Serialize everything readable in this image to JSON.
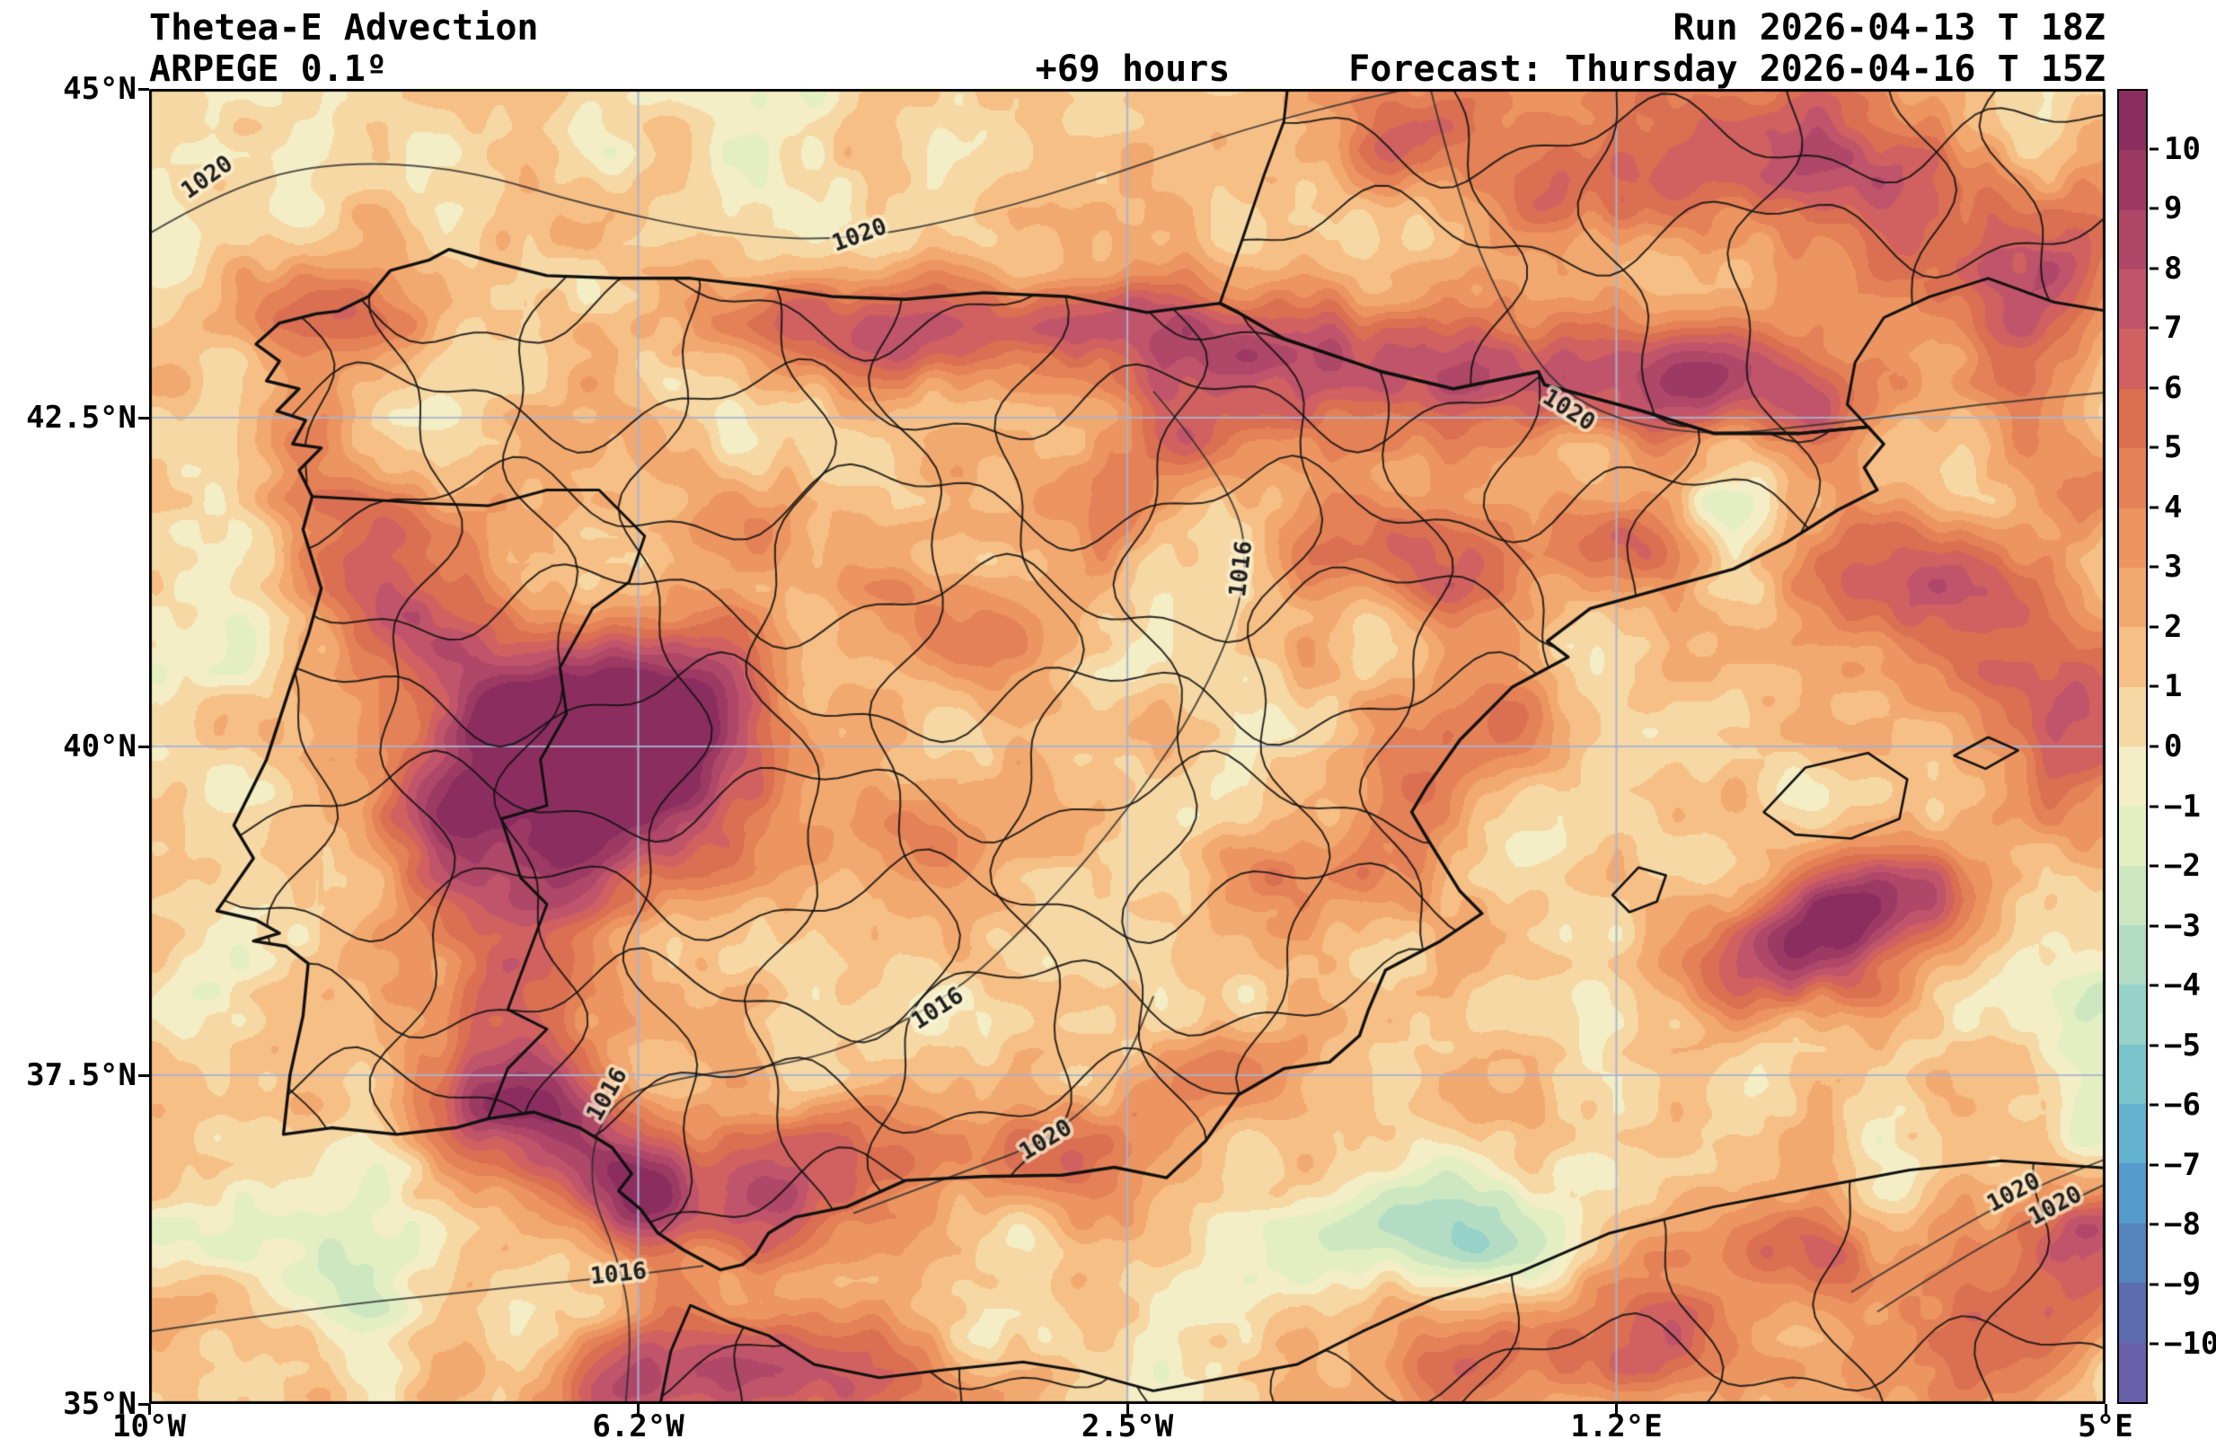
{
  "header": {
    "title": "Thetea-E Advection",
    "model": "ARPEGE 0.1º",
    "lead_time": "+69 hours",
    "run": "Run 2026-04-13 T 18Z",
    "forecast": "Forecast: Thursday 2026-04-16 T 15Z"
  },
  "axes": {
    "x_ticks": [
      "10°W",
      "6.2°W",
      "2.5°W",
      "1.2°E",
      "5°E"
    ],
    "y_ticks": [
      "45°N",
      "42.5°N",
      "40°N",
      "37.5°N",
      "35°N"
    ],
    "lon_range": [
      -10,
      5
    ],
    "lat_range": [
      35,
      45
    ],
    "grid_color": "#a9b3cf"
  },
  "colorbar": {
    "ticks": [
      "10",
      "9",
      "8",
      "7",
      "6",
      "5",
      "4",
      "3",
      "2",
      "1",
      "0",
      "−1",
      "−2",
      "−3",
      "−4",
      "−5",
      "−6",
      "−7",
      "−8",
      "−9",
      "−10"
    ],
    "band_colors_top_to_bottom": [
      "#8b2e5f",
      "#9d3a64",
      "#ae4768",
      "#c0546a",
      "#d06160",
      "#da6f52",
      "#e48156",
      "#ec9560",
      "#f2a96f",
      "#f6bf85",
      "#f6d8a4",
      "#f4eec6",
      "#e3efc3",
      "#cde8c1",
      "#b2ddc4",
      "#96d2c8",
      "#7ac4cc",
      "#63b2cf",
      "#559bcb",
      "#5583bc",
      "#5b6cae",
      "#6a60a9"
    ]
  },
  "chart_data": {
    "type": "heatmap",
    "title": "Thetea-E Advection",
    "region": "Iberian Peninsula and western Mediterranean",
    "lon_range": [
      -10,
      5
    ],
    "lat_range": [
      35,
      45
    ],
    "levels": [
      -10,
      -9,
      -8,
      -7,
      -6,
      -5,
      -4,
      -3,
      -2,
      -1,
      0,
      1,
      2,
      3,
      4,
      5,
      6,
      7,
      8,
      9,
      10
    ],
    "x_ticks": [
      "10°W",
      "6.2°W",
      "2.5°W",
      "1.2°E",
      "5°E"
    ],
    "y_ticks": [
      "45°N",
      "42.5°N",
      "40°N",
      "37.5°N",
      "35°N"
    ],
    "field_blobs": [
      [
        -6.35,
        39.75,
        0.85,
        0.55,
        9.5
      ],
      [
        -6.0,
        40.45,
        0.5,
        0.38,
        6.5
      ],
      [
        -7.0,
        40.2,
        0.55,
        0.4,
        5.5
      ],
      [
        -7.2,
        38.7,
        0.5,
        0.85,
        6
      ],
      [
        -7.7,
        40.95,
        0.45,
        0.5,
        5
      ],
      [
        -8.55,
        43.3,
        0.55,
        0.28,
        5
      ],
      [
        -8.8,
        42.35,
        0.3,
        0.45,
        4
      ],
      [
        -4.6,
        43.15,
        0.95,
        0.28,
        5.5
      ],
      [
        -2.6,
        43.2,
        0.8,
        0.3,
        6
      ],
      [
        -1.15,
        42.95,
        0.7,
        0.3,
        6
      ],
      [
        0.6,
        42.8,
        0.8,
        0.35,
        6.5
      ],
      [
        1.9,
        42.85,
        0.5,
        0.3,
        7.5
      ],
      [
        2.85,
        42.55,
        0.45,
        0.3,
        5
      ],
      [
        2.3,
        44.5,
        0.85,
        0.5,
        6.5
      ],
      [
        1.0,
        44.3,
        0.5,
        0.35,
        4
      ],
      [
        3.6,
        44.05,
        0.5,
        0.4,
        5
      ],
      [
        4.6,
        43.6,
        0.5,
        0.4,
        6
      ],
      [
        3.4,
        41.3,
        0.55,
        0.35,
        6
      ],
      [
        4.45,
        40.6,
        0.5,
        0.45,
        5.5
      ],
      [
        4.8,
        41.9,
        0.4,
        0.3,
        4
      ],
      [
        2.45,
        38.35,
        0.55,
        0.3,
        6
      ],
      [
        2.95,
        38.65,
        0.5,
        0.3,
        6.5
      ],
      [
        3.45,
        38.95,
        0.5,
        0.3,
        6
      ],
      [
        -0.3,
        39.6,
        0.4,
        0.5,
        4.5
      ],
      [
        0.3,
        40.3,
        0.4,
        0.4,
        4
      ],
      [
        0.1,
        41.2,
        0.45,
        0.3,
        4
      ],
      [
        1.3,
        41.55,
        0.4,
        0.25,
        4.5
      ],
      [
        -1.8,
        37.5,
        0.4,
        0.3,
        4
      ],
      [
        -2.8,
        36.9,
        0.5,
        0.28,
        4.5
      ],
      [
        -4.5,
        36.9,
        0.7,
        0.35,
        5
      ],
      [
        -5.3,
        36.4,
        0.4,
        0.3,
        6.5
      ],
      [
        -6.2,
        36.5,
        0.27,
        0.27,
        8.5
      ],
      [
        -6.7,
        36.95,
        0.5,
        0.4,
        6
      ],
      [
        -7.3,
        37.3,
        0.5,
        0.3,
        5
      ],
      [
        -5.5,
        35.3,
        0.6,
        0.35,
        6.5
      ],
      [
        -4.3,
        35.15,
        0.5,
        0.3,
        5
      ],
      [
        -6.4,
        35.1,
        0.4,
        0.3,
        5
      ],
      [
        0.2,
        35.3,
        0.5,
        0.3,
        5
      ],
      [
        1.5,
        35.6,
        0.6,
        0.35,
        5.5
      ],
      [
        2.8,
        36.1,
        0.5,
        0.3,
        4.5
      ],
      [
        4.2,
        35.6,
        0.6,
        0.4,
        5.5
      ],
      [
        4.9,
        36.3,
        0.4,
        0.3,
        5
      ],
      [
        -3.8,
        40.9,
        0.5,
        0.3,
        3.5
      ],
      [
        -2.7,
        41.8,
        0.45,
        0.3,
        4
      ],
      [
        -2.0,
        42.4,
        0.5,
        0.3,
        5
      ],
      [
        -5.3,
        41.5,
        0.5,
        0.4,
        3.5
      ],
      [
        -4.2,
        39.3,
        0.5,
        0.3,
        3.5
      ],
      [
        -1.3,
        39.0,
        0.4,
        0.3,
        3.5
      ],
      [
        -0.6,
        41.6,
        0.55,
        0.3,
        4.5
      ],
      [
        -8.3,
        41.3,
        0.35,
        0.45,
        4.5
      ],
      [
        -7.8,
        39.4,
        0.3,
        0.45,
        4
      ],
      [
        4.9,
        39.9,
        0.4,
        0.5,
        4
      ],
      [
        -0.4,
        44.6,
        0.6,
        0.4,
        4
      ],
      [
        4.3,
        42.9,
        0.4,
        0.3,
        4
      ],
      [
        -8.6,
        36.2,
        0.6,
        0.35,
        -3.5
      ],
      [
        -9.6,
        38.4,
        0.4,
        0.5,
        -2
      ],
      [
        -9.3,
        41.3,
        0.4,
        0.5,
        -1.5
      ],
      [
        0.4,
        36.25,
        0.5,
        0.3,
        -4.5
      ],
      [
        -0.3,
        36.6,
        0.4,
        0.25,
        -2.5
      ],
      [
        2.0,
        41.8,
        0.28,
        0.2,
        -2.5
      ],
      [
        4.7,
        38.2,
        0.45,
        0.4,
        -2.5
      ],
      [
        4.9,
        37.0,
        0.3,
        0.3,
        -2
      ],
      [
        -7.9,
        42.4,
        0.3,
        0.25,
        -2
      ],
      [
        -0.2,
        44.1,
        0.45,
        0.3,
        -1.5
      ],
      [
        -1.1,
        36.1,
        0.4,
        0.25,
        -2
      ],
      [
        -3.4,
        35.55,
        0.35,
        0.25,
        -2
      ],
      [
        0.3,
        39.3,
        0.35,
        0.3,
        -1.5
      ],
      [
        -5.5,
        44.6,
        0.6,
        0.4,
        -1.2
      ],
      [
        -9.7,
        44.2,
        0.5,
        0.4,
        -1
      ]
    ],
    "noise": {
      "base": 0.9,
      "amp1": 1.5,
      "scale1": 0.55,
      "amp2": 0.9,
      "scale2": 0.22,
      "seed": 7
    },
    "isobars": [
      {
        "points": [
          [
            -10,
            43.9
          ],
          [
            -9.4,
            44.25
          ],
          [
            -8.6,
            44.45
          ],
          [
            -7.6,
            44.4
          ],
          [
            -6.6,
            44.1
          ],
          [
            -5.5,
            43.88
          ],
          [
            -4.6,
            43.85
          ],
          [
            -3.6,
            44.05
          ],
          [
            -2.6,
            44.35
          ],
          [
            -1.6,
            44.7
          ],
          [
            -0.6,
            44.95
          ],
          [
            0.15,
            45.1
          ]
        ],
        "labels": [
          {
            "text": "1020",
            "lon": -9.55,
            "lat": 44.32,
            "rot": -35
          },
          {
            "text": "1020",
            "lon": -4.55,
            "lat": 43.88,
            "rot": -20
          }
        ]
      },
      {
        "points": [
          [
            -0.2,
            45.1
          ],
          [
            0.05,
            44.1
          ],
          [
            0.45,
            43.2
          ],
          [
            0.9,
            42.6
          ],
          [
            1.8,
            42.35
          ],
          [
            2.9,
            42.45
          ],
          [
            4.0,
            42.6
          ],
          [
            5.1,
            42.7
          ]
        ],
        "labels": [
          {
            "text": "1020",
            "lon": 0.88,
            "lat": 42.55,
            "rot": 32
          }
        ]
      },
      {
        "points": [
          [
            -2.3,
            42.7
          ],
          [
            -1.7,
            42.0
          ],
          [
            -1.55,
            41.3
          ],
          [
            -1.9,
            40.4
          ],
          [
            -2.5,
            39.5
          ],
          [
            -3.2,
            38.7
          ],
          [
            -3.9,
            38.05
          ],
          [
            -4.9,
            37.6
          ],
          [
            -5.9,
            37.5
          ],
          [
            -6.5,
            37.3
          ],
          [
            -6.65,
            36.7
          ],
          [
            -6.4,
            36.1
          ],
          [
            -6.3,
            35.6
          ],
          [
            -6.35,
            34.95
          ]
        ],
        "labels": [
          {
            "text": "1016",
            "lon": -1.62,
            "lat": 41.35,
            "rot": -83
          },
          {
            "text": "1016",
            "lon": -3.95,
            "lat": 38.0,
            "rot": -33
          },
          {
            "text": "1016",
            "lon": -6.48,
            "lat": 37.35,
            "rot": -60
          }
        ]
      },
      {
        "points": [
          [
            -10,
            35.55
          ],
          [
            -8.8,
            35.72
          ],
          [
            -7.5,
            35.86
          ],
          [
            -6.4,
            35.97
          ],
          [
            -5.75,
            36.05
          ]
        ],
        "labels": [
          {
            "text": "1016",
            "lon": -6.4,
            "lat": 35.98,
            "rot": -6
          }
        ]
      },
      {
        "points": [
          [
            -4.6,
            36.45
          ],
          [
            -3.8,
            36.75
          ],
          [
            -3.1,
            37.0
          ],
          [
            -2.55,
            37.5
          ],
          [
            -2.3,
            38.1
          ]
        ],
        "labels": [
          {
            "text": "1020",
            "lon": -3.12,
            "lat": 37.0,
            "rot": -31
          }
        ]
      },
      {
        "points": [
          [
            3.05,
            35.85
          ],
          [
            3.8,
            36.3
          ],
          [
            4.45,
            36.65
          ],
          [
            5.1,
            36.9
          ]
        ],
        "labels": [
          {
            "text": "1020",
            "lon": 4.3,
            "lat": 36.6,
            "rot": -28
          }
        ]
      },
      {
        "points": [
          [
            3.25,
            35.7
          ],
          [
            3.95,
            36.15
          ],
          [
            4.6,
            36.48
          ],
          [
            5.1,
            36.72
          ]
        ],
        "labels": [
          {
            "text": "1020",
            "lon": 4.62,
            "lat": 36.5,
            "rot": -28
          }
        ]
      }
    ]
  }
}
